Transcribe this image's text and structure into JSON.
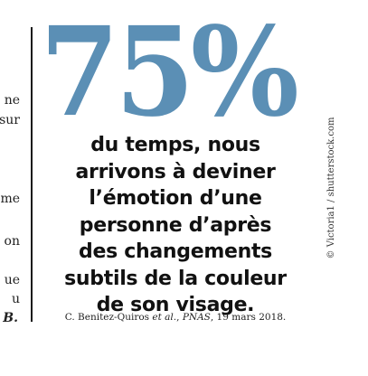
{
  "left_column": {
    "fragments": [
      "ne",
      "sur",
      "me",
      "on",
      "ue",
      "u",
      "B."
    ]
  },
  "quote": {
    "big_number": "75%",
    "lines": [
      "du temps, nous",
      "arrivons à deviner",
      "l’émotion d’une",
      "personne d’après",
      "des changements",
      "subtils de la couleur",
      "de son visage."
    ],
    "color": "#5b8fb5"
  },
  "citation": {
    "authors": "C. Benitez-Quiros",
    "etal": "et al.",
    "journal": "PNAS",
    "date": "19 mars 2018."
  },
  "photo_credit": "© Victoria1 / shutterstock.com"
}
